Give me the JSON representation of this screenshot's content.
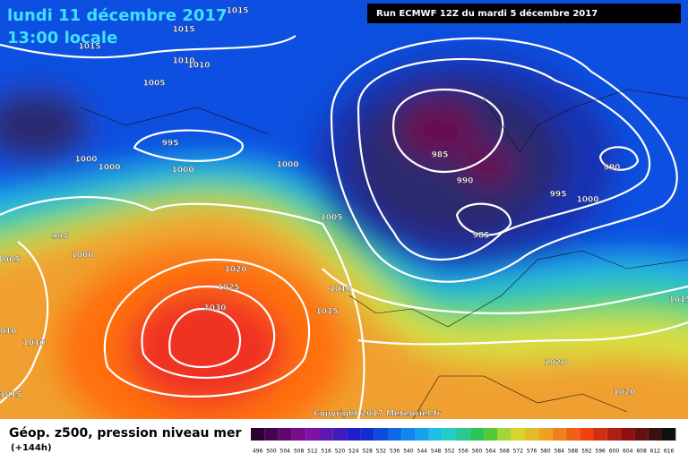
{
  "header": {
    "date": "lundi 11 décembre 2017",
    "time": "13:00 locale",
    "run": "Run ECMWF 12Z du mardi 5 décembre 2017"
  },
  "map": {
    "isobar_labels": [
      "1015",
      "1015",
      "1015",
      "1010",
      "1010",
      "1005",
      "995",
      "1000",
      "1000",
      "1000",
      "1000",
      "995",
      "1000",
      "1005",
      "1005",
      "1020",
      "1025",
      "1030",
      "1010",
      "1015",
      "1010",
      "1010",
      "1015",
      "985",
      "990",
      "985",
      "990",
      "995",
      "1000",
      "1020",
      "1020",
      "1015"
    ],
    "copyright": "Copyright 2017 Meteociel.fr"
  },
  "footer": {
    "title": "Géop. z500, pression niveau mer",
    "lead": "(+144h)",
    "scale": [
      496,
      500,
      504,
      508,
      512,
      516,
      520,
      524,
      528,
      532,
      536,
      540,
      544,
      548,
      552,
      556,
      560,
      564,
      568,
      572,
      576,
      580,
      584,
      588,
      592,
      596,
      600,
      604,
      608,
      612,
      616
    ]
  }
}
